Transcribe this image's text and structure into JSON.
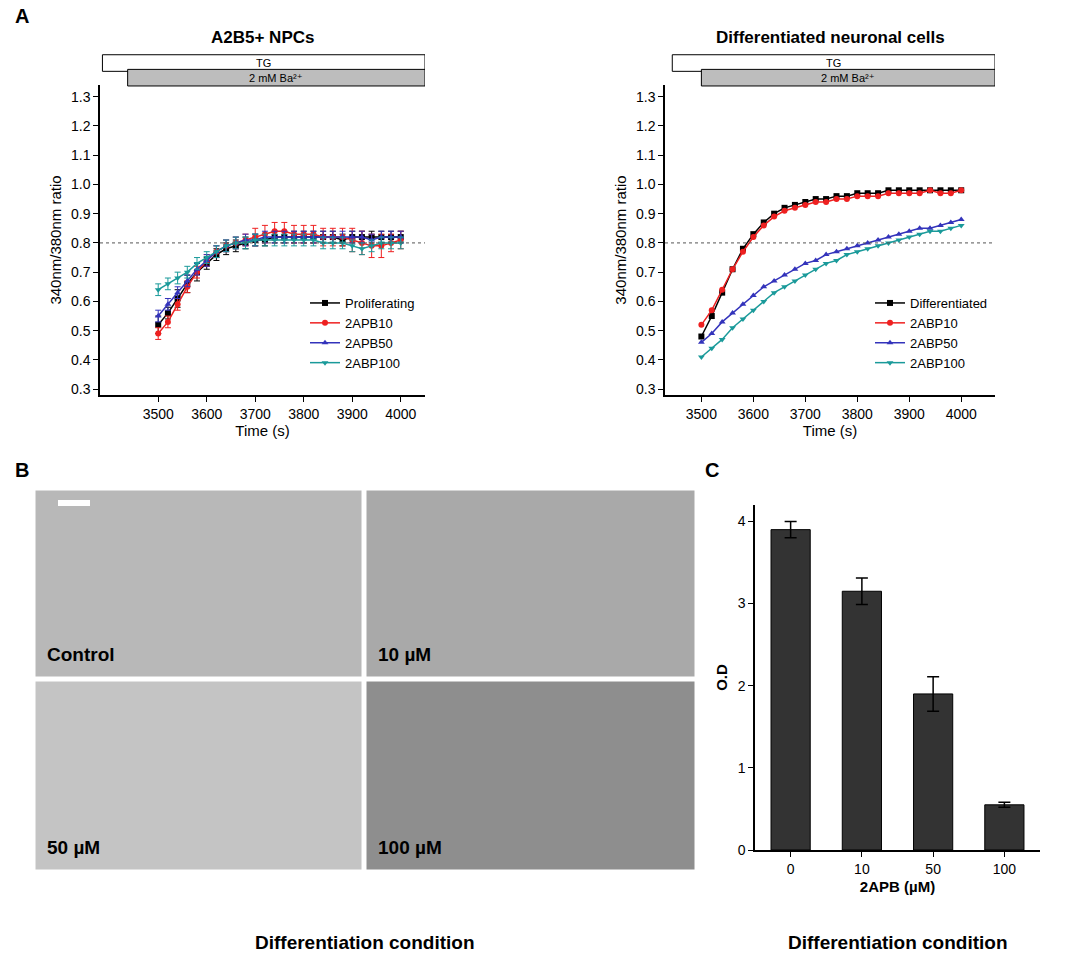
{
  "panel_labels": [
    "A",
    "B",
    "C"
  ],
  "chart_data": [
    {
      "type": "line",
      "title": "A2B5+ NPCs",
      "x_label": "Time (s)",
      "y_label": "340nm/380nm ratio",
      "x": [
        3500,
        3520,
        3540,
        3560,
        3580,
        3600,
        3620,
        3640,
        3660,
        3680,
        3700,
        3720,
        3740,
        3760,
        3780,
        3800,
        3820,
        3840,
        3860,
        3880,
        3900,
        3920,
        3940,
        3960,
        3980,
        4000
      ],
      "series": [
        {
          "name": "Proliferating",
          "color": "#000000",
          "marker": "square",
          "line_style": "solid",
          "values": [
            0.52,
            0.56,
            0.61,
            0.66,
            0.7,
            0.73,
            0.76,
            0.78,
            0.79,
            0.8,
            0.81,
            0.81,
            0.82,
            0.82,
            0.82,
            0.82,
            0.82,
            0.82,
            0.82,
            0.81,
            0.82,
            0.82,
            0.82,
            0.82,
            0.82,
            0.82
          ],
          "errors": [
            0.03,
            0.02,
            0.03,
            0.03,
            0.03,
            0.02,
            0.02,
            0.02,
            0.02,
            0.02,
            0.02,
            0.02,
            0.02,
            0.02,
            0.02,
            0.02,
            0.02,
            0.02,
            0.02,
            0.02,
            0.02,
            0.02,
            0.02,
            0.02,
            0.02,
            0.02
          ]
        },
        {
          "name": "2APB10",
          "color": "#ee2020",
          "marker": "circle",
          "line_style": "solid",
          "values": [
            0.49,
            0.53,
            0.59,
            0.65,
            0.7,
            0.74,
            0.77,
            0.79,
            0.8,
            0.81,
            0.82,
            0.83,
            0.84,
            0.84,
            0.83,
            0.83,
            0.83,
            0.82,
            0.82,
            0.82,
            0.81,
            0.8,
            0.79,
            0.79,
            0.8,
            0.81
          ],
          "errors": [
            0.02,
            0.02,
            0.02,
            0.02,
            0.02,
            0.02,
            0.02,
            0.02,
            0.02,
            0.02,
            0.03,
            0.03,
            0.03,
            0.03,
            0.03,
            0.03,
            0.03,
            0.03,
            0.03,
            0.03,
            0.04,
            0.04,
            0.04,
            0.04,
            0.03,
            0.03
          ]
        },
        {
          "name": "2APB50",
          "color": "#3333bb",
          "marker": "triangle-up",
          "line_style": "solid",
          "values": [
            0.55,
            0.59,
            0.63,
            0.67,
            0.71,
            0.74,
            0.77,
            0.79,
            0.8,
            0.81,
            0.81,
            0.82,
            0.82,
            0.82,
            0.82,
            0.82,
            0.82,
            0.82,
            0.82,
            0.82,
            0.82,
            0.82,
            0.81,
            0.82,
            0.82,
            0.82
          ],
          "errors": [
            0.02,
            0.02,
            0.02,
            0.02,
            0.02,
            0.02,
            0.02,
            0.02,
            0.02,
            0.02,
            0.02,
            0.02,
            0.02,
            0.02,
            0.02,
            0.02,
            0.02,
            0.02,
            0.02,
            0.02,
            0.02,
            0.02,
            0.02,
            0.02,
            0.02,
            0.02
          ]
        },
        {
          "name": "2ABP100",
          "color": "#1a9a9a",
          "marker": "triangle-down",
          "line_style": "solid",
          "values": [
            0.64,
            0.66,
            0.68,
            0.7,
            0.73,
            0.75,
            0.77,
            0.79,
            0.8,
            0.8,
            0.81,
            0.81,
            0.81,
            0.81,
            0.81,
            0.81,
            0.81,
            0.8,
            0.8,
            0.8,
            0.79,
            0.78,
            0.79,
            0.8,
            0.8,
            0.8
          ],
          "errors": [
            0.02,
            0.02,
            0.02,
            0.02,
            0.02,
            0.02,
            0.02,
            0.02,
            0.02,
            0.02,
            0.02,
            0.02,
            0.02,
            0.02,
            0.02,
            0.02,
            0.02,
            0.02,
            0.02,
            0.02,
            0.02,
            0.02,
            0.02,
            0.02,
            0.02,
            0.02
          ]
        }
      ],
      "bands": [
        {
          "label": "TG",
          "start": 3385,
          "end": 4050,
          "color": "#ffffff"
        },
        {
          "label": "2 mM Ba²⁺",
          "start": 3437,
          "end": 4050,
          "color": "#bdbdbd"
        }
      ],
      "reference_line": 0.8,
      "xlim": [
        3380,
        4050
      ],
      "xticks": [
        3500,
        3600,
        3700,
        3800,
        3900,
        4000
      ],
      "ylim": [
        0.28,
        1.34
      ],
      "yticks": [
        0.3,
        0.4,
        0.5,
        0.6,
        0.7,
        0.8,
        0.9,
        {
          "value": 1,
          "label": "1.0"
        },
        1.1,
        1.2,
        1.3
      ],
      "legend": "lower right",
      "grid": false
    },
    {
      "type": "line",
      "title": "Differentiated neuronal cells",
      "x_label": "Time (s)",
      "y_label": "340nm/380nm ratio",
      "x": [
        3500,
        3520,
        3540,
        3560,
        3580,
        3600,
        3620,
        3640,
        3660,
        3680,
        3700,
        3720,
        3740,
        3760,
        3780,
        3800,
        3820,
        3840,
        3860,
        3880,
        3900,
        3920,
        3940,
        3960,
        3980,
        4000
      ],
      "series": [
        {
          "name": "Differentiated",
          "color": "#000000",
          "marker": "square",
          "line_style": "solid",
          "values": [
            0.48,
            0.55,
            0.63,
            0.71,
            0.78,
            0.83,
            0.87,
            0.9,
            0.92,
            0.93,
            0.94,
            0.95,
            0.95,
            0.96,
            0.96,
            0.97,
            0.97,
            0.97,
            0.98,
            0.98,
            0.98,
            0.98,
            0.98,
            0.98,
            0.98,
            0.98
          ]
        },
        {
          "name": "2ABP10",
          "color": "#ee2020",
          "marker": "circle",
          "line_style": "solid",
          "values": [
            0.52,
            0.57,
            0.64,
            0.71,
            0.77,
            0.82,
            0.86,
            0.89,
            0.91,
            0.92,
            0.93,
            0.94,
            0.94,
            0.95,
            0.95,
            0.96,
            0.96,
            0.96,
            0.97,
            0.97,
            0.97,
            0.97,
            0.98,
            0.97,
            0.97,
            0.98
          ]
        },
        {
          "name": "2ABP50",
          "color": "#3333bb",
          "marker": "triangle-up",
          "line_style": "solid",
          "values": [
            0.46,
            0.49,
            0.53,
            0.56,
            0.59,
            0.62,
            0.65,
            0.67,
            0.69,
            0.71,
            0.73,
            0.74,
            0.76,
            0.77,
            0.78,
            0.79,
            0.8,
            0.81,
            0.82,
            0.83,
            0.84,
            0.85,
            0.85,
            0.86,
            0.87,
            0.88
          ]
        },
        {
          "name": "2ABP100",
          "color": "#1a9a9a",
          "marker": "triangle-down",
          "line_style": "solid",
          "values": [
            0.41,
            0.44,
            0.47,
            0.51,
            0.54,
            0.57,
            0.6,
            0.63,
            0.65,
            0.67,
            0.69,
            0.71,
            0.73,
            0.74,
            0.76,
            0.77,
            0.78,
            0.79,
            0.8,
            0.81,
            0.82,
            0.83,
            0.84,
            0.84,
            0.85,
            0.86
          ]
        }
      ],
      "bands": [
        {
          "label": "TG",
          "start": 3444,
          "end": 4065,
          "color": "#ffffff"
        },
        {
          "label": "2 mM Ba²⁺",
          "start": 3500,
          "end": 4065,
          "color": "#bdbdbd"
        }
      ],
      "reference_line": 0.8,
      "xlim": [
        3430,
        4065
      ],
      "xticks": [
        3500,
        3600,
        3700,
        3800,
        3900,
        4000
      ],
      "ylim": [
        0.28,
        1.34
      ],
      "yticks": [
        0.3,
        0.4,
        0.5,
        0.6,
        0.7,
        0.8,
        0.9,
        {
          "value": 1,
          "label": "1.0"
        },
        1.1,
        1.2,
        1.3
      ],
      "legend": "lower right",
      "grid": false
    },
    {
      "type": "bar",
      "x_label": "2APB (µM)",
      "y_label": "O.D",
      "caption": "Differentiation condition",
      "categories": [
        "0",
        "10",
        "50",
        "100"
      ],
      "values": [
        3.9,
        3.15,
        1.9,
        0.55
      ],
      "errors": [
        0.1,
        0.16,
        0.21,
        0.03
      ],
      "color": "#333333",
      "ylim": [
        0,
        4.2
      ],
      "yticks": [
        0,
        1,
        2,
        3,
        4
      ],
      "grid": false
    }
  ],
  "micrographs": {
    "labels": [
      "Control",
      "10 µM",
      "50 µM",
      "100 µM"
    ],
    "caption": "Differentiation condition"
  }
}
